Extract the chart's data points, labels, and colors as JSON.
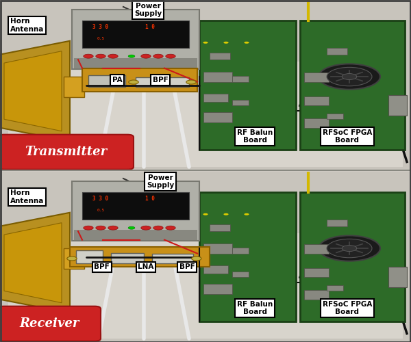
{
  "figure_width": 6.0,
  "figure_height": 5.0,
  "dpi": 100,
  "bg_color": "#d4cfc8",
  "top_bg": "#ccc8c0",
  "bottom_bg": "#d0ccc4",
  "divider_color": "#888880",
  "annotations_top": [
    {
      "text": "Horn\nAntenna",
      "xf": 0.025,
      "yf": 0.895,
      "ha": "left",
      "va": "top",
      "fs": 7.5,
      "fw": "bold"
    },
    {
      "text": "Power\nSupply",
      "xf": 0.36,
      "yf": 0.985,
      "ha": "center",
      "va": "top",
      "fs": 7.5,
      "fw": "bold"
    },
    {
      "text": "PA",
      "xf": 0.285,
      "yf": 0.53,
      "ha": "center",
      "va": "center",
      "fs": 7.5,
      "fw": "bold"
    },
    {
      "text": "BPF",
      "xf": 0.39,
      "yf": 0.53,
      "ha": "center",
      "va": "center",
      "fs": 7.5,
      "fw": "bold"
    },
    {
      "text": "RF Balun\nBoard",
      "xf": 0.62,
      "yf": 0.155,
      "ha": "center",
      "va": "bottom",
      "fs": 7.5,
      "fw": "bold"
    },
    {
      "text": "RFSoC FPGA\nBoard",
      "xf": 0.845,
      "yf": 0.155,
      "ha": "center",
      "va": "bottom",
      "fs": 7.5,
      "fw": "bold"
    }
  ],
  "annotations_bot": [
    {
      "text": "Horn\nAntenna",
      "xf": 0.025,
      "yf": 0.895,
      "ha": "left",
      "va": "top",
      "fs": 7.5,
      "fw": "bold"
    },
    {
      "text": "Power\nSupply",
      "xf": 0.39,
      "yf": 0.985,
      "ha": "center",
      "va": "top",
      "fs": 7.5,
      "fw": "bold"
    },
    {
      "text": "BPF",
      "xf": 0.248,
      "yf": 0.44,
      "ha": "center",
      "va": "center",
      "fs": 7.5,
      "fw": "bold"
    },
    {
      "text": "LNA",
      "xf": 0.355,
      "yf": 0.44,
      "ha": "center",
      "va": "center",
      "fs": 7.5,
      "fw": "bold"
    },
    {
      "text": "BPF",
      "xf": 0.455,
      "yf": 0.44,
      "ha": "center",
      "va": "center",
      "fs": 7.5,
      "fw": "bold"
    },
    {
      "text": "RF Balun\nBoard",
      "xf": 0.62,
      "yf": 0.155,
      "ha": "center",
      "va": "bottom",
      "fs": 7.5,
      "fw": "bold"
    },
    {
      "text": "RFSoC FPGA\nBoard",
      "xf": 0.845,
      "yf": 0.155,
      "ha": "center",
      "va": "bottom",
      "fs": 7.5,
      "fw": "bold"
    }
  ],
  "label_top": "Transmitter",
  "label_bot": "Receiver",
  "label_color": "#ffffff",
  "label_bg": "#cc2222",
  "label_ec": "#991111",
  "pcb_green": "#2d6b28",
  "pcb_edge": "#1a4015",
  "pcb_dark": "#1e4e1a",
  "fan_dark": "#1a1a1a",
  "fan_mid": "#2a2a2a",
  "horn_gold": "#b89020",
  "horn_light": "#cca030",
  "ps_gray": "#b0b0a8",
  "ps_dark": "#787870",
  "screen_bg": "#0a0a0a",
  "stand_white": "#e8e8e8",
  "cable_red": "#cc1a1a",
  "cable_black": "#111111",
  "cable_yellow": "#d4b800"
}
